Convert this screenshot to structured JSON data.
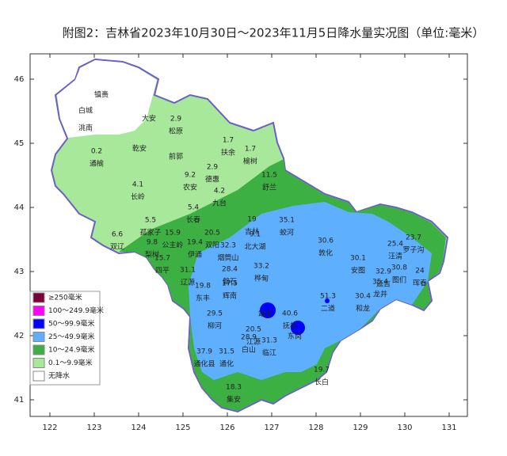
{
  "title": "附图2：吉林省2023年10月30日～2023年11月5日降水量实况图（单位:毫米）",
  "lon_ticks": [
    122,
    123,
    124,
    125,
    126,
    127,
    128,
    129,
    130,
    131
  ],
  "lat_ticks": [
    46,
    45,
    44,
    43,
    42,
    41
  ],
  "legend": [
    {
      "label": "≥250毫米",
      "color": "#7a0038"
    },
    {
      "label": "100～249.9毫米",
      "color": "#ff00ff"
    },
    {
      "label": "50～99.9毫米",
      "color": "#0000ff"
    },
    {
      "label": "25～49.9毫米",
      "color": "#5eb0ff"
    },
    {
      "label": "10～24.9毫米",
      "color": "#3cb043"
    },
    {
      "label": "0.1～9.9毫米",
      "color": "#a8e89a"
    },
    {
      "label": "无降水",
      "color": "#ffffff"
    }
  ],
  "stations": [
    {
      "name": "镇赉"
    },
    {
      "name": "白城"
    },
    {
      "name": "洮南"
    },
    {
      "name": "大安"
    },
    {
      "name": "松原",
      "value": 2.9
    },
    {
      "name": "通榆",
      "value": 0.2
    },
    {
      "name": "乾安"
    },
    {
      "name": "扶余",
      "value": 1.7
    },
    {
      "name": "榆树",
      "value": 1.7
    },
    {
      "name": "前郭"
    },
    {
      "name": "农安",
      "value": 9.2
    },
    {
      "name": "德惠",
      "value": 2.9
    },
    {
      "name": "舒兰",
      "value": 11.5
    },
    {
      "name": "长岭",
      "value": 4.1
    },
    {
      "name": "九台",
      "value": 4.2
    },
    {
      "name": "长春",
      "value": 5.4
    },
    {
      "name": "孤家子",
      "value": 5.5
    },
    {
      "name": "双辽",
      "value": 6.6
    },
    {
      "name": "公主岭",
      "value": 15.9
    },
    {
      "name": "梨树",
      "value": 9.8
    },
    {
      "name": "伊通",
      "value": 19.4
    },
    {
      "name": "双阳",
      "value": 20.5
    },
    {
      "name": "吉林",
      "value": 19
    },
    {
      "name": "蛟河",
      "value": 35.1
    },
    {
      "name": "烟筒山",
      "value": 32.3
    },
    {
      "name": "北大湖",
      "value": 9.1
    },
    {
      "name": "四平",
      "value": 15.7
    },
    {
      "name": "辽源",
      "value": 31.1
    },
    {
      "name": "磐石",
      "value": 28.4
    },
    {
      "name": "桦甸",
      "value": 33.2
    },
    {
      "name": "敦化",
      "value": 30.6
    },
    {
      "name": "安图",
      "value": 30.1
    },
    {
      "name": "汪清",
      "value": 25.4
    },
    {
      "name": "罗子沟",
      "value": 23.7
    },
    {
      "name": "图们",
      "value": 30.8
    },
    {
      "name": "延吉",
      "value": 32.9
    },
    {
      "name": "龙井",
      "value": 35.4
    },
    {
      "name": "珲春",
      "value": 24
    },
    {
      "name": "东丰",
      "value": 19.8
    },
    {
      "name": "辉南",
      "value": 17.5
    },
    {
      "name": "二道",
      "value": 51.3
    },
    {
      "name": "抚松",
      "value": 40.6
    },
    {
      "name": "靖宇"
    },
    {
      "name": "和龙",
      "value": 30.4
    },
    {
      "name": "柳河",
      "value": 29.5
    },
    {
      "name": "江源",
      "value": 20.5
    },
    {
      "name": "临江",
      "value": 31.3
    },
    {
      "name": "东岗"
    },
    {
      "name": "通化县",
      "value": 37.9
    },
    {
      "name": "通化",
      "value": 31.5
    },
    {
      "name": "白山",
      "value": 28.9
    },
    {
      "name": "长白",
      "value": 19.7
    },
    {
      "name": "集安",
      "value": 18.3
    }
  ]
}
